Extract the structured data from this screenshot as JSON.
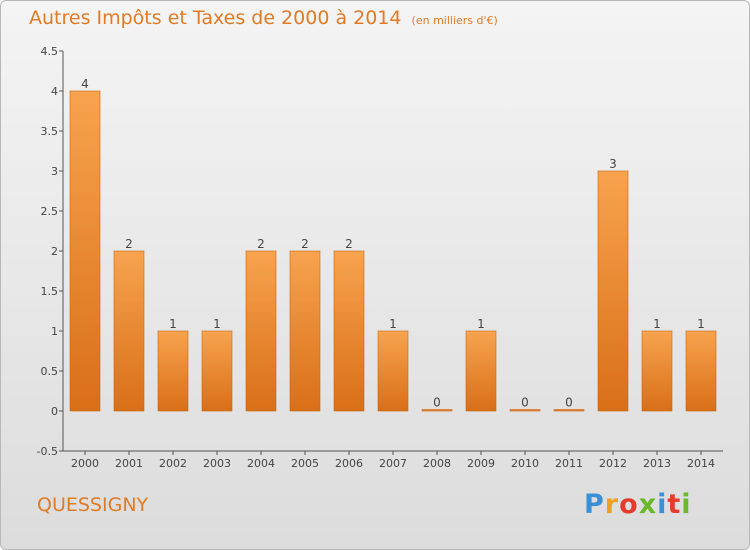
{
  "header": {
    "title": "Autres Impôts et Taxes de 2000 à 2014",
    "unit": "(en milliers d'€)"
  },
  "footer": {
    "commune": "QUESSIGNY",
    "logo_letters": [
      "P",
      "r",
      "o",
      "x",
      "i",
      "t",
      "i"
    ],
    "logo_colors": [
      "#3a8fd6",
      "#f0a020",
      "#e23c2c",
      "#6bb82b",
      "#3a8fd6",
      "#e23c2c",
      "#6bb82b"
    ]
  },
  "colors": {
    "bar_light": "#f7a34f",
    "bar_dark": "#d96f17",
    "title": "#e07b25",
    "axis": "#555555"
  },
  "chart_data": {
    "type": "bar",
    "categories": [
      "2000",
      "2001",
      "2002",
      "2003",
      "2004",
      "2005",
      "2006",
      "2007",
      "2008",
      "2009",
      "2010",
      "2011",
      "2012",
      "2013",
      "2014"
    ],
    "values": [
      4,
      2,
      1,
      1,
      2,
      2,
      2,
      1,
      0,
      1,
      0,
      0,
      3,
      1,
      1
    ],
    "value_labels": [
      "4",
      "2",
      "1",
      "1",
      "2",
      "2",
      "2",
      "1",
      "0",
      "1",
      "0",
      "0",
      "3",
      "1",
      "1"
    ],
    "y_ticks": [
      "-0.5",
      "0",
      "0.5",
      "1",
      "1.5",
      "2",
      "2.5",
      "3",
      "3.5",
      "4",
      "4.5"
    ],
    "ylim": [
      -0.5,
      4.5
    ],
    "grid": false,
    "legend": "none"
  }
}
